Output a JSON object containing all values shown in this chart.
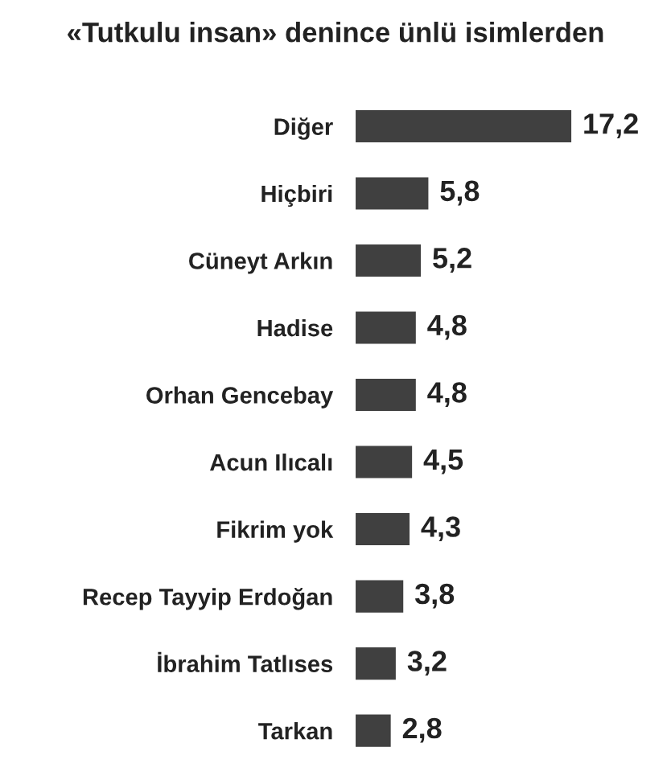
{
  "chart_data": {
    "type": "bar",
    "orientation": "horizontal",
    "title": "«Tutkulu insan» denince ünlü isimlerden",
    "categories": [
      "Diğer",
      "Hiçbiri",
      "Cüneyt Arkın",
      "Hadise",
      "Orhan Gencebay",
      "Acun Ilıcalı",
      "Fikrim yok",
      "Recep Tayyip Erdoğan",
      "İbrahim Tatlıses",
      "Tarkan"
    ],
    "values": [
      17.2,
      5.8,
      5.2,
      4.8,
      4.8,
      4.5,
      4.3,
      3.8,
      3.2,
      2.8
    ],
    "value_labels": [
      "17,2",
      "5,8",
      "5,2",
      "4,8",
      "4,8",
      "4,5",
      "4,3",
      "3,8",
      "3,2",
      "2,8"
    ],
    "color": "#404040",
    "grid": false,
    "legend": false
  }
}
